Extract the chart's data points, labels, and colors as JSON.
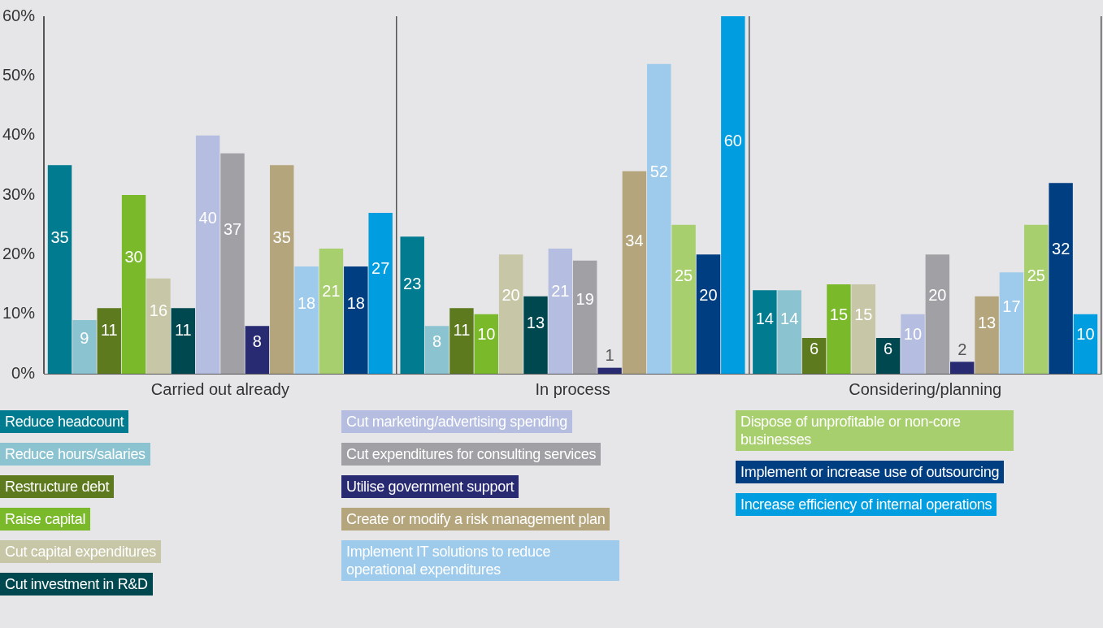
{
  "chart_data": {
    "type": "bar",
    "categories": [
      "Carried out already",
      "In process",
      "Considering/planning"
    ],
    "ylim": [
      0,
      60
    ],
    "yticks": [
      {
        "value": 0,
        "label": "0%"
      },
      {
        "value": 10,
        "label": "10%"
      },
      {
        "value": 20,
        "label": "20%"
      },
      {
        "value": 30,
        "label": "30%"
      },
      {
        "value": 40,
        "label": "40%"
      },
      {
        "value": 50,
        "label": "50%"
      },
      {
        "value": 60,
        "label": "60%"
      }
    ],
    "grid": "x",
    "legend": "bottom",
    "data_labels": true,
    "series": [
      {
        "name": "Reduce headcount",
        "color": "#007b8f",
        "values": [
          35,
          23,
          14
        ]
      },
      {
        "name": "Reduce hours/salaries",
        "color": "#8cc3d0",
        "values": [
          9,
          8,
          14
        ]
      },
      {
        "name": "Restructure debt",
        "color": "#5e7a1e",
        "values": [
          11,
          11,
          6
        ]
      },
      {
        "name": "Raise capital",
        "color": "#7ab929",
        "values": [
          30,
          10,
          15
        ]
      },
      {
        "name": "Cut capital expenditures",
        "color": "#c7c6a6",
        "values": [
          16,
          20,
          15
        ]
      },
      {
        "name": "Cut investment in R&D",
        "color": "#004850",
        "values": [
          11,
          13,
          6
        ]
      },
      {
        "name": "Cut marketing/advertising spending",
        "color": "#b5bde0",
        "values": [
          40,
          21,
          10
        ]
      },
      {
        "name": "Cut expenditures for consulting services",
        "color": "#a0a0a5",
        "values": [
          37,
          19,
          20
        ]
      },
      {
        "name": "Utilise government support",
        "color": "#282a72",
        "values": [
          8,
          1,
          2
        ]
      },
      {
        "name": "Create or modify a risk management plan",
        "color": "#b4a57c",
        "values": [
          35,
          34,
          13
        ]
      },
      {
        "name": "Implement IT solutions to reduce operational expenditures",
        "color": "#9ecbec",
        "values": [
          18,
          52,
          17
        ]
      },
      {
        "name": "Dispose of unprofitable or non-core businesses",
        "color": "#a8cf6e",
        "values": [
          21,
          25,
          25
        ]
      },
      {
        "name": "Implement or increase use of outsourcing",
        "color": "#003e82",
        "values": [
          18,
          20,
          32
        ]
      },
      {
        "name": "Increase efficiency of internal operations",
        "color": "#009ee0",
        "values": [
          27,
          60,
          10
        ]
      }
    ]
  }
}
